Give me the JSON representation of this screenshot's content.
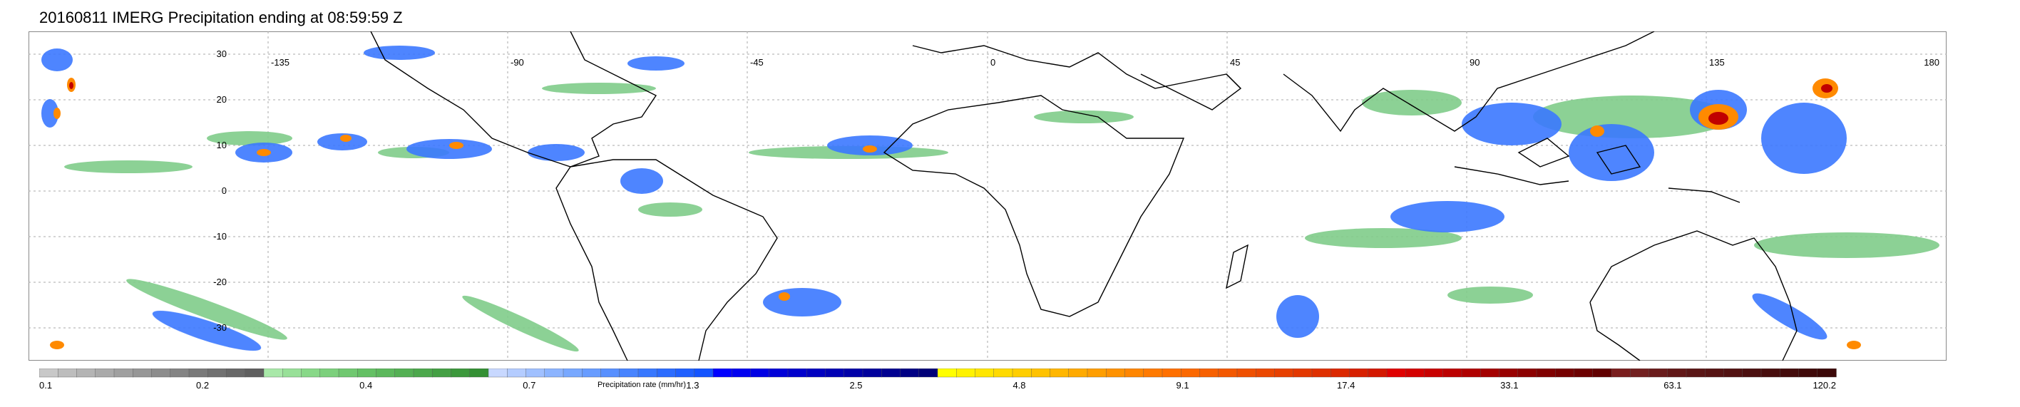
{
  "title": "20160811 IMERG Precipitation ending at 08:59:59 Z",
  "map": {
    "longitude_labels": [
      "-135",
      "-90",
      "-45",
      "0",
      "45",
      "90",
      "135",
      "180"
    ],
    "latitude_labels": [
      "30",
      "20",
      "10",
      "0",
      "-10",
      "-20",
      "-30"
    ],
    "colors": {
      "land_outline": "#000000",
      "grid": "#999999",
      "frame": "#888888"
    }
  },
  "colorbar": {
    "title": "Precipitation rate (mm/hr)",
    "tick_labels": [
      "0.1",
      "0.2",
      "0.4",
      "0.7",
      "1.3",
      "2.5",
      "4.8",
      "9.1",
      "17.4",
      "33.1",
      "63.1",
      "120.2"
    ],
    "bins": [
      "#c8c8c8",
      "#bdbdbd",
      "#b4b4b4",
      "#aaaaaa",
      "#a0a0a0",
      "#979797",
      "#8d8d8d",
      "#848484",
      "#7a7a7a",
      "#717171",
      "#686868",
      "#5f5f5f",
      "#a8e8a8",
      "#98e098",
      "#88d888",
      "#7cd07c",
      "#70c870",
      "#64c064",
      "#5cb85c",
      "#54b054",
      "#4ca84c",
      "#44a044",
      "#3c983c",
      "#349034",
      "#c8d8ff",
      "#b4ccff",
      "#a0c0ff",
      "#8cb4ff",
      "#78a8ff",
      "#689cff",
      "#5890ff",
      "#4884ff",
      "#3878ff",
      "#2c6cff",
      "#2060ff",
      "#1454ff",
      "#0000ff",
      "#0000f0",
      "#0000e4",
      "#0000d8",
      "#0000cc",
      "#0000c0",
      "#0000b4",
      "#0000a8",
      "#00009c",
      "#000090",
      "#000084",
      "#000078",
      "#ffff00",
      "#fff200",
      "#ffe600",
      "#ffda00",
      "#ffce00",
      "#ffc200",
      "#ffb600",
      "#ffaa00",
      "#ff9e00",
      "#ff9200",
      "#ff8600",
      "#ff7a00",
      "#ff7000",
      "#fb6800",
      "#f76000",
      "#f35800",
      "#ef5000",
      "#eb4800",
      "#e74000",
      "#e33800",
      "#df3000",
      "#db2800",
      "#d72000",
      "#d31800",
      "#e00000",
      "#d40000",
      "#c80000",
      "#bc0000",
      "#b00000",
      "#a40000",
      "#980000",
      "#8c0000",
      "#800000",
      "#760000",
      "#6c0000",
      "#620000",
      "#7a1e1e",
      "#722020",
      "#6a1c1c",
      "#621818",
      "#5a1616",
      "#561414",
      "#521212",
      "#4c1010",
      "#480e0e",
      "#440c0c",
      "#400a0a",
      "#3c0808"
    ]
  }
}
